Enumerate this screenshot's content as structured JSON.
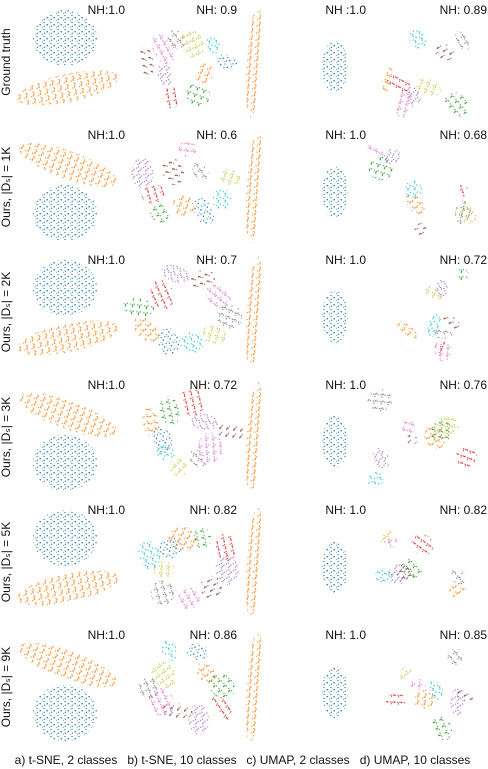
{
  "rows": [
    {
      "label": "Ground truth",
      "nh": [
        "NH:1.0",
        "NH: 0.9",
        "NH :1.0",
        "NH: 0.89"
      ]
    },
    {
      "label": "Ours, |Dₛ| = 1K",
      "nh": [
        "NH:1.0",
        "NH: 0.6",
        "NH: 1.0",
        "NH: 0.68"
      ]
    },
    {
      "label": "Ours, |Dₛ| = 2K",
      "nh": [
        "NH:1.0",
        "NH: 0.7",
        "NH: 1.0",
        "NH: 0.72"
      ]
    },
    {
      "label": "Ours, |Dₛ| = 3K",
      "nh": [
        "NH:1.0",
        "NH: 0.72",
        "NH: 1.0",
        "NH: 0.76"
      ]
    },
    {
      "label": "Ours, |Dₛ| = 5K",
      "nh": [
        "NH:1.0",
        "NH: 0.82",
        "NH: 1.0",
        "NH: 0.82"
      ]
    },
    {
      "label": "Ours, |Dₛ| = 9K",
      "nh": [
        "NH:1.0",
        "NH: 0.86",
        "NH: 1.0",
        "NH: 0.85"
      ]
    }
  ],
  "captions": [
    "a) t-SNE, 2 classes",
    "b) t-SNE, 10 classes",
    "c) UMAP, 2 classes",
    "d) UMAP, 10 classes"
  ]
}
